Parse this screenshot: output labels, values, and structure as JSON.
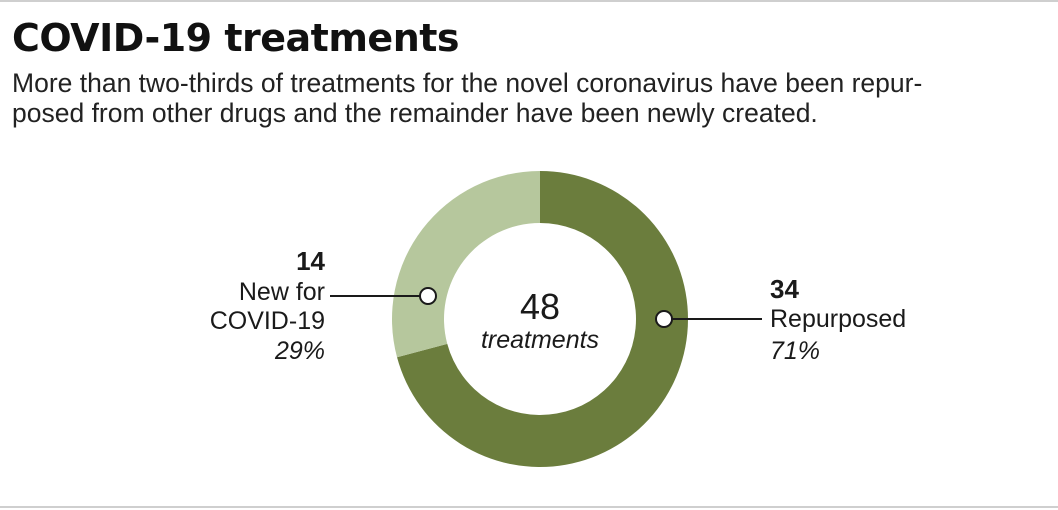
{
  "chart_data": {
    "type": "pie",
    "title": "COVID-19 treatments",
    "subtitle_lines": [
      "More than two-thirds of treatments for the novel coronavirus have been repur-",
      "posed from other drugs and the remainder have been newly created."
    ],
    "center_value": "48",
    "center_label": "treatments",
    "slices": [
      {
        "label": "Repurposed",
        "value": 34,
        "value_text": "34",
        "percent": "71%",
        "color": "#6b7d3d"
      },
      {
        "label_lines": [
          "New for",
          "COVID-19"
        ],
        "value": 14,
        "value_text": "14",
        "percent": "29%",
        "color": "#b6c79d"
      }
    ]
  }
}
